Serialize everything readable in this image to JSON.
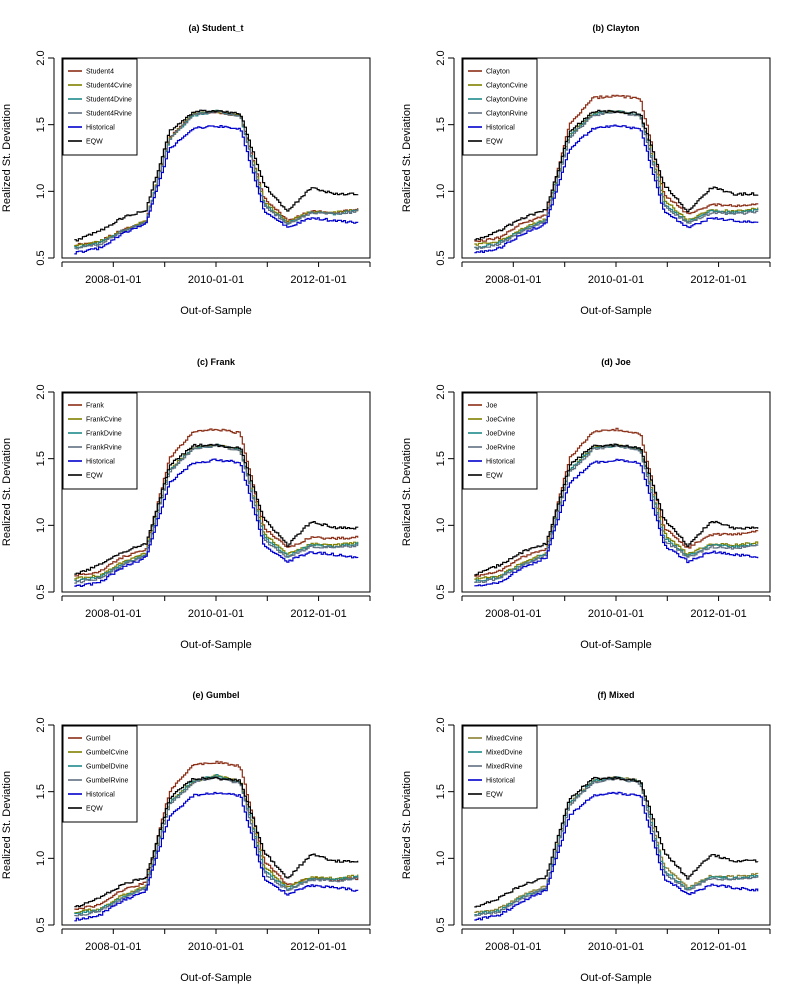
{
  "figure": {
    "x_dates": [
      "2007-01-01",
      "2007-07-01",
      "2008-01-01",
      "2008-07-01",
      "2009-01-01",
      "2009-07-01",
      "2010-01-01",
      "2010-07-01",
      "2011-01-01",
      "2011-07-01",
      "2012-01-01",
      "2012-07-01",
      "2013-01-01"
    ],
    "colors": {
      "brown": "#8B2E16",
      "olive": "#808000",
      "teal": "#1F8A8A",
      "slate": "#607080",
      "mixedolive": "#8A8030",
      "blue": "#0000CC",
      "black": "#000000"
    }
  },
  "chart_data": [
    {
      "type": "line",
      "title": "(a) Student_t",
      "xlabel": "Out-of-Sample",
      "ylabel": "Realized St. Deviation",
      "ylim": [
        0.5,
        2.0
      ],
      "yticks": [
        "0.5",
        "1.0",
        "1.5",
        "2.0"
      ],
      "xticks": [
        "2008-01-01",
        "2010-01-01",
        "2012-01-01"
      ],
      "legend_position": "top-left",
      "series": [
        {
          "name": "Student4",
          "color": "#8B2E16",
          "values": [
            0.6,
            0.62,
            0.71,
            0.78,
            1.4,
            1.58,
            1.59,
            1.57,
            0.95,
            0.78,
            0.85,
            0.84,
            0.87
          ]
        },
        {
          "name": "Student4Cvine",
          "color": "#808000",
          "values": [
            0.59,
            0.62,
            0.7,
            0.78,
            1.4,
            1.58,
            1.6,
            1.57,
            0.92,
            0.77,
            0.85,
            0.84,
            0.86
          ]
        },
        {
          "name": "Student4Dvine",
          "color": "#1F8A8A",
          "values": [
            0.58,
            0.61,
            0.7,
            0.77,
            1.39,
            1.57,
            1.6,
            1.56,
            0.9,
            0.76,
            0.84,
            0.83,
            0.86
          ]
        },
        {
          "name": "Student4Rvine",
          "color": "#607080",
          "values": [
            0.57,
            0.6,
            0.7,
            0.77,
            1.39,
            1.57,
            1.6,
            1.56,
            0.89,
            0.76,
            0.84,
            0.83,
            0.85
          ]
        },
        {
          "name": "Historical",
          "color": "#0000CC",
          "values": [
            0.54,
            0.57,
            0.68,
            0.76,
            1.32,
            1.47,
            1.49,
            1.47,
            0.85,
            0.73,
            0.8,
            0.78,
            0.76
          ]
        },
        {
          "name": "EQW",
          "color": "#000000",
          "values": [
            0.63,
            0.7,
            0.8,
            0.86,
            1.45,
            1.6,
            1.6,
            1.58,
            1.05,
            0.85,
            1.03,
            0.98,
            0.98
          ]
        }
      ]
    },
    {
      "type": "line",
      "title": "(b) Clayton",
      "xlabel": "Out-of-Sample",
      "ylabel": "Realized St. Deviation",
      "ylim": [
        0.5,
        2.0
      ],
      "yticks": [
        "0.5",
        "1.0",
        "1.5",
        "2.0"
      ],
      "xticks": [
        "2008-01-01",
        "2010-01-01",
        "2012-01-01"
      ],
      "legend_position": "top-left",
      "series": [
        {
          "name": "Clayton",
          "color": "#8B2E16",
          "values": [
            0.62,
            0.65,
            0.76,
            0.82,
            1.5,
            1.7,
            1.72,
            1.69,
            0.98,
            0.83,
            0.9,
            0.89,
            0.9
          ]
        },
        {
          "name": "ClaytonCvine",
          "color": "#808000",
          "values": [
            0.6,
            0.62,
            0.72,
            0.79,
            1.42,
            1.58,
            1.6,
            1.57,
            0.94,
            0.78,
            0.86,
            0.85,
            0.87
          ]
        },
        {
          "name": "ClaytonDvine",
          "color": "#1F8A8A",
          "values": [
            0.58,
            0.61,
            0.71,
            0.78,
            1.41,
            1.58,
            1.6,
            1.57,
            0.91,
            0.77,
            0.85,
            0.84,
            0.86
          ]
        },
        {
          "name": "ClaytonRvine",
          "color": "#607080",
          "values": [
            0.57,
            0.6,
            0.7,
            0.78,
            1.4,
            1.57,
            1.6,
            1.56,
            0.89,
            0.76,
            0.84,
            0.83,
            0.85
          ]
        },
        {
          "name": "Historical",
          "color": "#0000CC",
          "values": [
            0.54,
            0.57,
            0.68,
            0.76,
            1.32,
            1.47,
            1.49,
            1.47,
            0.85,
            0.73,
            0.8,
            0.78,
            0.76
          ]
        },
        {
          "name": "EQW",
          "color": "#000000",
          "values": [
            0.63,
            0.7,
            0.8,
            0.86,
            1.45,
            1.6,
            1.6,
            1.58,
            1.05,
            0.85,
            1.03,
            0.98,
            0.98
          ]
        }
      ]
    },
    {
      "type": "line",
      "title": "(c) Frank",
      "xlabel": "Out-of-Sample",
      "ylabel": "Realized St. Deviation",
      "ylim": [
        0.5,
        2.0
      ],
      "yticks": [
        "0.5",
        "1.0",
        "1.5",
        "2.0"
      ],
      "xticks": [
        "2008-01-01",
        "2010-01-01",
        "2012-01-01"
      ],
      "legend_position": "top-left",
      "series": [
        {
          "name": "Frank",
          "color": "#8B2E16",
          "values": [
            0.62,
            0.65,
            0.76,
            0.82,
            1.5,
            1.7,
            1.72,
            1.69,
            0.98,
            0.83,
            0.91,
            0.9,
            0.91
          ]
        },
        {
          "name": "FrankCvine",
          "color": "#808000",
          "values": [
            0.6,
            0.62,
            0.72,
            0.79,
            1.42,
            1.58,
            1.6,
            1.57,
            0.94,
            0.78,
            0.86,
            0.85,
            0.87
          ]
        },
        {
          "name": "FrankDvine",
          "color": "#1F8A8A",
          "values": [
            0.58,
            0.61,
            0.71,
            0.78,
            1.41,
            1.58,
            1.6,
            1.57,
            0.91,
            0.77,
            0.85,
            0.84,
            0.86
          ]
        },
        {
          "name": "FrankRvine",
          "color": "#607080",
          "values": [
            0.57,
            0.6,
            0.7,
            0.78,
            1.4,
            1.57,
            1.6,
            1.56,
            0.89,
            0.76,
            0.84,
            0.83,
            0.85
          ]
        },
        {
          "name": "Historical",
          "color": "#0000CC",
          "values": [
            0.54,
            0.57,
            0.68,
            0.76,
            1.32,
            1.47,
            1.49,
            1.47,
            0.85,
            0.73,
            0.8,
            0.78,
            0.76
          ]
        },
        {
          "name": "EQW",
          "color": "#000000",
          "values": [
            0.63,
            0.7,
            0.8,
            0.86,
            1.45,
            1.6,
            1.6,
            1.58,
            1.05,
            0.85,
            1.03,
            0.98,
            0.98
          ]
        }
      ]
    },
    {
      "type": "line",
      "title": "(d) Joe",
      "xlabel": "Out-of-Sample",
      "ylabel": "Realized St. Deviation",
      "ylim": [
        0.5,
        2.0
      ],
      "yticks": [
        "0.5",
        "1.0",
        "1.5",
        "2.0"
      ],
      "xticks": [
        "2008-01-01",
        "2010-01-01",
        "2012-01-01"
      ],
      "legend_position": "top-left",
      "series": [
        {
          "name": "Joe",
          "color": "#8B2E16",
          "values": [
            0.62,
            0.65,
            0.76,
            0.82,
            1.5,
            1.7,
            1.72,
            1.69,
            0.98,
            0.83,
            0.93,
            0.93,
            0.96
          ]
        },
        {
          "name": "JoeCvine",
          "color": "#808000",
          "values": [
            0.6,
            0.62,
            0.72,
            0.79,
            1.42,
            1.58,
            1.6,
            1.57,
            0.94,
            0.78,
            0.86,
            0.85,
            0.87
          ]
        },
        {
          "name": "JoeDvine",
          "color": "#1F8A8A",
          "values": [
            0.58,
            0.61,
            0.71,
            0.78,
            1.41,
            1.58,
            1.6,
            1.57,
            0.91,
            0.77,
            0.85,
            0.84,
            0.86
          ]
        },
        {
          "name": "JoeRvine",
          "color": "#607080",
          "values": [
            0.57,
            0.6,
            0.7,
            0.78,
            1.4,
            1.57,
            1.6,
            1.56,
            0.89,
            0.76,
            0.84,
            0.83,
            0.85
          ]
        },
        {
          "name": "Historical",
          "color": "#0000CC",
          "values": [
            0.54,
            0.57,
            0.68,
            0.76,
            1.32,
            1.47,
            1.49,
            1.47,
            0.85,
            0.73,
            0.8,
            0.78,
            0.76
          ]
        },
        {
          "name": "EQW",
          "color": "#000000",
          "values": [
            0.63,
            0.7,
            0.8,
            0.86,
            1.45,
            1.6,
            1.6,
            1.58,
            1.05,
            0.85,
            1.03,
            0.98,
            0.98
          ]
        }
      ]
    },
    {
      "type": "line",
      "title": "(e) Gumbel",
      "xlabel": "Out-of-Sample",
      "ylabel": "Realized St. Deviation",
      "ylim": [
        0.5,
        2.0
      ],
      "yticks": [
        "0.5",
        "1.0",
        "1.5",
        "2.0"
      ],
      "xticks": [
        "2008-01-01",
        "2010-01-01",
        "2012-01-01"
      ],
      "legend_position": "top-left",
      "series": [
        {
          "name": "Gumbel",
          "color": "#8B2E16",
          "values": [
            0.62,
            0.65,
            0.76,
            0.82,
            1.5,
            1.7,
            1.72,
            1.69,
            0.98,
            0.8,
            0.85,
            0.84,
            0.85
          ]
        },
        {
          "name": "GumbelCvine",
          "color": "#808000",
          "values": [
            0.6,
            0.62,
            0.72,
            0.79,
            1.42,
            1.58,
            1.62,
            1.58,
            0.94,
            0.78,
            0.86,
            0.85,
            0.87
          ]
        },
        {
          "name": "GumbelDvine",
          "color": "#1F8A8A",
          "values": [
            0.58,
            0.61,
            0.71,
            0.78,
            1.41,
            1.58,
            1.62,
            1.57,
            0.91,
            0.77,
            0.85,
            0.84,
            0.86
          ]
        },
        {
          "name": "GumbelRvine",
          "color": "#607080",
          "values": [
            0.57,
            0.6,
            0.7,
            0.78,
            1.4,
            1.57,
            1.61,
            1.56,
            0.89,
            0.76,
            0.84,
            0.83,
            0.85
          ]
        },
        {
          "name": "Historical",
          "color": "#0000CC",
          "values": [
            0.54,
            0.57,
            0.68,
            0.76,
            1.32,
            1.47,
            1.49,
            1.47,
            0.85,
            0.73,
            0.8,
            0.78,
            0.76
          ]
        },
        {
          "name": "EQW",
          "color": "#000000",
          "values": [
            0.63,
            0.7,
            0.8,
            0.86,
            1.45,
            1.6,
            1.6,
            1.58,
            1.05,
            0.85,
            1.03,
            0.98,
            0.98
          ]
        }
      ]
    },
    {
      "type": "line",
      "title": "(f) Mixed",
      "xlabel": "Out-of-Sample",
      "ylabel": "Realized St. Deviation",
      "ylim": [
        0.5,
        2.0
      ],
      "yticks": [
        "0.5",
        "1.0",
        "1.5",
        "2.0"
      ],
      "xticks": [
        "2008-01-01",
        "2010-01-01",
        "2012-01-01"
      ],
      "legend_position": "top-left",
      "series": [
        {
          "name": "MixedCvine",
          "color": "#8A8030",
          "values": [
            0.6,
            0.62,
            0.72,
            0.79,
            1.42,
            1.58,
            1.61,
            1.58,
            0.94,
            0.78,
            0.87,
            0.86,
            0.88
          ]
        },
        {
          "name": "MixedDvine",
          "color": "#1F8A8A",
          "values": [
            0.58,
            0.61,
            0.71,
            0.78,
            1.41,
            1.58,
            1.61,
            1.57,
            0.91,
            0.77,
            0.86,
            0.85,
            0.87
          ]
        },
        {
          "name": "MixedRvine",
          "color": "#607080",
          "values": [
            0.57,
            0.6,
            0.7,
            0.78,
            1.4,
            1.57,
            1.6,
            1.56,
            0.89,
            0.76,
            0.85,
            0.84,
            0.86
          ]
        },
        {
          "name": "Historical",
          "color": "#0000CC",
          "values": [
            0.54,
            0.57,
            0.68,
            0.76,
            1.32,
            1.47,
            1.49,
            1.47,
            0.85,
            0.73,
            0.8,
            0.78,
            0.76
          ]
        },
        {
          "name": "EQW",
          "color": "#000000",
          "values": [
            0.63,
            0.7,
            0.8,
            0.86,
            1.45,
            1.6,
            1.6,
            1.58,
            1.05,
            0.85,
            1.03,
            0.98,
            0.98
          ]
        }
      ]
    }
  ]
}
